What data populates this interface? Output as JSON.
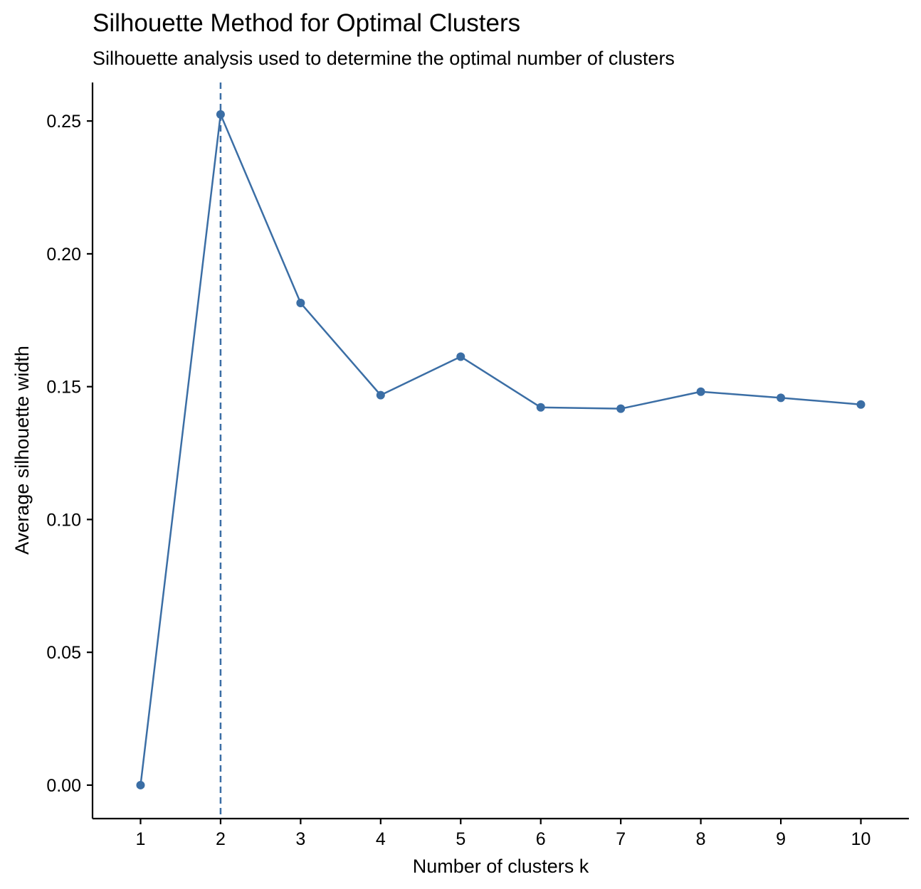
{
  "chart_data": {
    "type": "line",
    "title": "Silhouette Method for Optimal Clusters",
    "subtitle": "Silhouette analysis used to determine the optimal number of clusters",
    "xlabel": "Number of clusters k",
    "ylabel": "Average silhouette width",
    "x": [
      1,
      2,
      3,
      4,
      5,
      6,
      7,
      8,
      9,
      10
    ],
    "series": [
      {
        "values": [
          0.0,
          0.2525,
          0.1815,
          0.1468,
          0.1613,
          0.1422,
          0.1417,
          0.1481,
          0.1458,
          0.1433
        ]
      }
    ],
    "x_tick_labels": [
      "1",
      "2",
      "3",
      "4",
      "5",
      "6",
      "7",
      "8",
      "9",
      "10"
    ],
    "y_ticks": [
      0.0,
      0.05,
      0.1,
      0.15,
      0.2,
      0.25
    ],
    "y_tick_labels": [
      "0.00",
      "0.05",
      "0.10",
      "0.15",
      "0.20",
      "0.25"
    ],
    "xlim": [
      0.4,
      10.6
    ],
    "ylim": [
      -0.0126,
      0.2645
    ],
    "reference_line": {
      "x": 2,
      "style": "dashed"
    },
    "grid": false,
    "legend": "none",
    "colors": {
      "line": "#3B6EA5",
      "axis": "#000000",
      "background": "#FFFFFF"
    }
  }
}
